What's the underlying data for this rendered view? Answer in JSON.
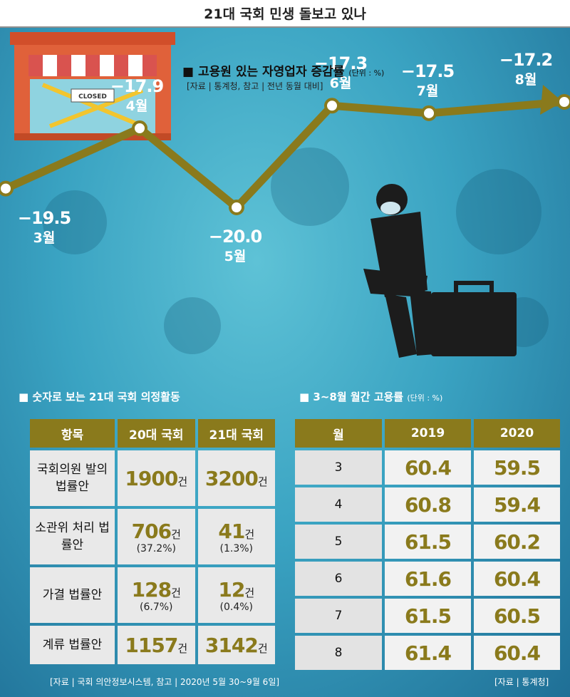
{
  "page_title": "21대 국회 민생 돌보고 있나",
  "shop_sign": "CLOSED",
  "chart_data": {
    "type": "line",
    "title": "고용원 있는 자영업자 증감률",
    "unit": "(단위 : %)",
    "source": "[자료 | 통계청, 참고 | 전년 동월 대비]",
    "categories": [
      "3월",
      "4월",
      "5월",
      "6월",
      "7월",
      "8월"
    ],
    "values": [
      -19.5,
      -17.9,
      -20.0,
      -17.3,
      -17.5,
      -17.2
    ],
    "value_labels": [
      "−19.5",
      "−17.9",
      "−20.0",
      "−17.3",
      "−17.5",
      "−17.2"
    ],
    "line_color": "#8a7a1c"
  },
  "assembly": {
    "title": "숫자로 보는 21대 국회 의정활동",
    "headers": [
      "항목",
      "20대 국회",
      "21대 국회"
    ],
    "rows": [
      {
        "label": "국회의원 발의 법률안",
        "c20": "1900",
        "c20_pct": "",
        "c21": "3200",
        "c21_pct": ""
      },
      {
        "label": "소관위 처리 법률안",
        "c20": "706",
        "c20_pct": "(37.2%)",
        "c21": "41",
        "c21_pct": "(1.3%)"
      },
      {
        "label": "가결 법률안",
        "c20": "128",
        "c20_pct": "(6.7%)",
        "c21": "12",
        "c21_pct": "(0.4%)"
      },
      {
        "label": "계류 법률안",
        "c20": "1157",
        "c20_pct": "",
        "c21": "3142",
        "c21_pct": ""
      }
    ],
    "unit": "건",
    "source": "[자료 | 국회 의안정보시스템, 참고 | 2020년 5월 30~9월 6일]"
  },
  "employment": {
    "title": "3~8월 월간 고용률",
    "unit": "(단위 : %)",
    "headers": [
      "월",
      "2019",
      "2020"
    ],
    "rows": [
      {
        "month": "3",
        "y2019": "60.4",
        "y2020": "59.5"
      },
      {
        "month": "4",
        "y2019": "60.8",
        "y2020": "59.4"
      },
      {
        "month": "5",
        "y2019": "61.5",
        "y2020": "60.2"
      },
      {
        "month": "6",
        "y2019": "61.6",
        "y2020": "60.4"
      },
      {
        "month": "7",
        "y2019": "61.5",
        "y2020": "60.5"
      },
      {
        "month": "8",
        "y2019": "61.4",
        "y2020": "60.4"
      }
    ],
    "source": "[자료 | 통계청]"
  }
}
